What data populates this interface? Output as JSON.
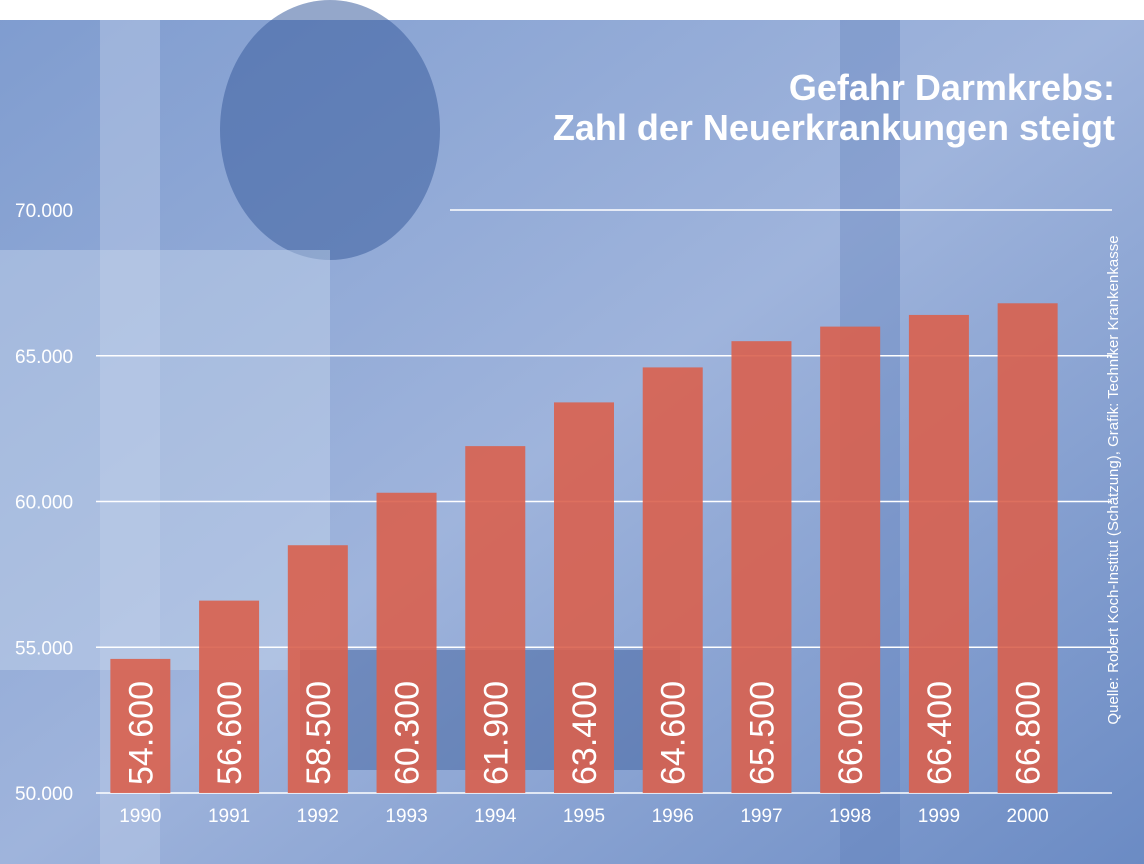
{
  "chart_data": {
    "type": "bar",
    "title": [
      "Gefahr Darmkrebs:",
      "Zahl der Neuerkrankungen steigt"
    ],
    "source": "Quelle: Robert Koch-Institut (Schätzung), Grafik: Techniker Krankenkasse",
    "categories": [
      "1990",
      "1991",
      "1992",
      "1993",
      "1994",
      "1995",
      "1996",
      "1997",
      "1998",
      "1999",
      "2000"
    ],
    "values": [
      54600,
      56600,
      58500,
      60300,
      61900,
      63400,
      64600,
      65500,
      66000,
      66400,
      66800
    ],
    "value_labels": [
      "54.600",
      "56.600",
      "58.500",
      "60.300",
      "61.900",
      "63.400",
      "64.600",
      "65.500",
      "66.000",
      "66.400",
      "66.800"
    ],
    "color": "#d9604e",
    "ylim": [
      50000,
      70000
    ],
    "yticks": [
      {
        "value": 50000,
        "label": "50.000"
      },
      {
        "value": 55000,
        "label": "55.000"
      },
      {
        "value": 60000,
        "label": "60.000"
      },
      {
        "value": 65000,
        "label": "65.000"
      },
      {
        "value": 70000,
        "label": "70.000"
      }
    ],
    "grid": true
  }
}
